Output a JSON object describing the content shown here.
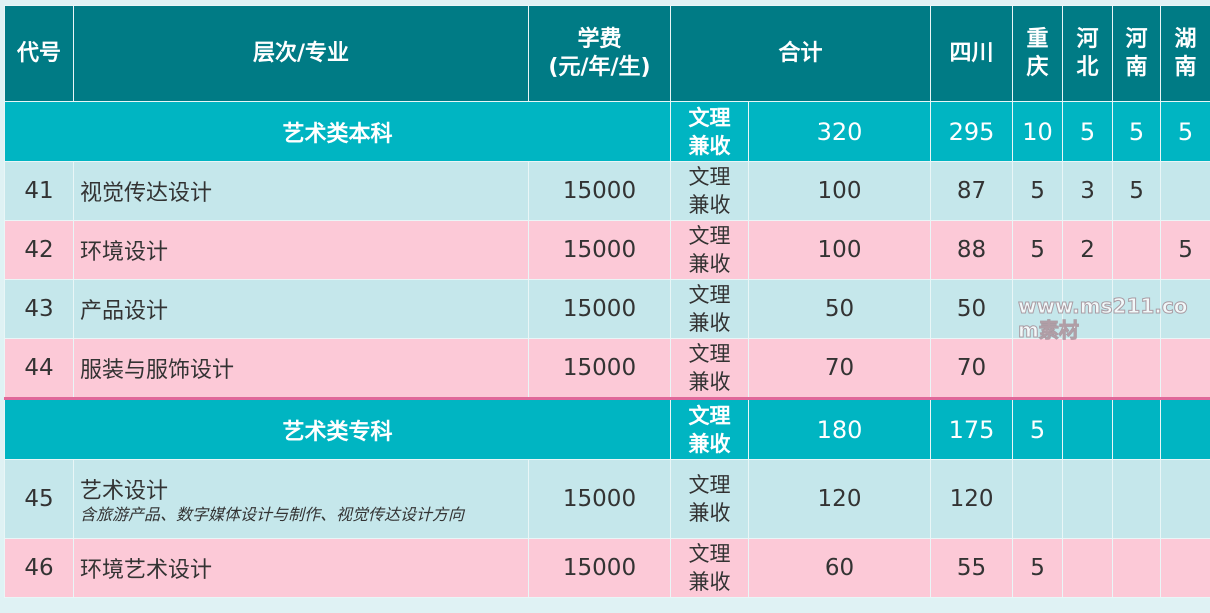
{
  "colors": {
    "header": "#007b85",
    "group": "#00b5c2",
    "row_light": "#c5e7eb",
    "row_pink": "#fcc9d7"
  },
  "headers": [
    "代号",
    "层次/专业",
    "学费\n(元/年/生)",
    "合计",
    "四川",
    "重庆",
    "河北",
    "河南",
    "湖南"
  ],
  "groups": [
    {
      "label": "艺术类本科",
      "type": "文理兼收",
      "total": "320",
      "sichuan": "295",
      "chongqing": "10",
      "hebei": "5",
      "henan": "5",
      "hunan": "5",
      "rows": [
        {
          "code": "41",
          "name": "视觉传达设计",
          "sub": "",
          "fee": "15000",
          "type": "文理兼收",
          "total": "100",
          "sichuan": "87",
          "chongqing": "5",
          "hebei": "3",
          "henan": "5",
          "hunan": ""
        },
        {
          "code": "42",
          "name": "环境设计",
          "sub": "",
          "fee": "15000",
          "type": "文理兼收",
          "total": "100",
          "sichuan": "88",
          "chongqing": "5",
          "hebei": "2",
          "henan": "",
          "hunan": "5"
        },
        {
          "code": "43",
          "name": "产品设计",
          "sub": "",
          "fee": "15000",
          "type": "文理兼收",
          "total": "50",
          "sichuan": "50",
          "chongqing": "",
          "hebei": "",
          "henan": "",
          "hunan": ""
        },
        {
          "code": "44",
          "name": "服装与服饰设计",
          "sub": "",
          "fee": "15000",
          "type": "文理兼收",
          "total": "70",
          "sichuan": "70",
          "chongqing": "",
          "hebei": "",
          "henan": "",
          "hunan": ""
        }
      ]
    },
    {
      "label": "艺术类专科",
      "type": "文理兼收",
      "total": "180",
      "sichuan": "175",
      "chongqing": "5",
      "hebei": "",
      "henan": "",
      "hunan": "",
      "rows": [
        {
          "code": "45",
          "name": "艺术设计",
          "sub": "含旅游产品、数字媒体设计与制作、视觉传达设计方向",
          "fee": "15000",
          "type": "文理兼收",
          "total": "120",
          "sichuan": "120",
          "chongqing": "",
          "hebei": "",
          "henan": "",
          "hunan": ""
        },
        {
          "code": "46",
          "name": "环境艺术设计",
          "sub": "",
          "fee": "15000",
          "type": "文理兼收",
          "total": "60",
          "sichuan": "55",
          "chongqing": "5",
          "hebei": "",
          "henan": "",
          "hunan": ""
        }
      ]
    }
  ],
  "watermark": "www.ms211.com素材"
}
